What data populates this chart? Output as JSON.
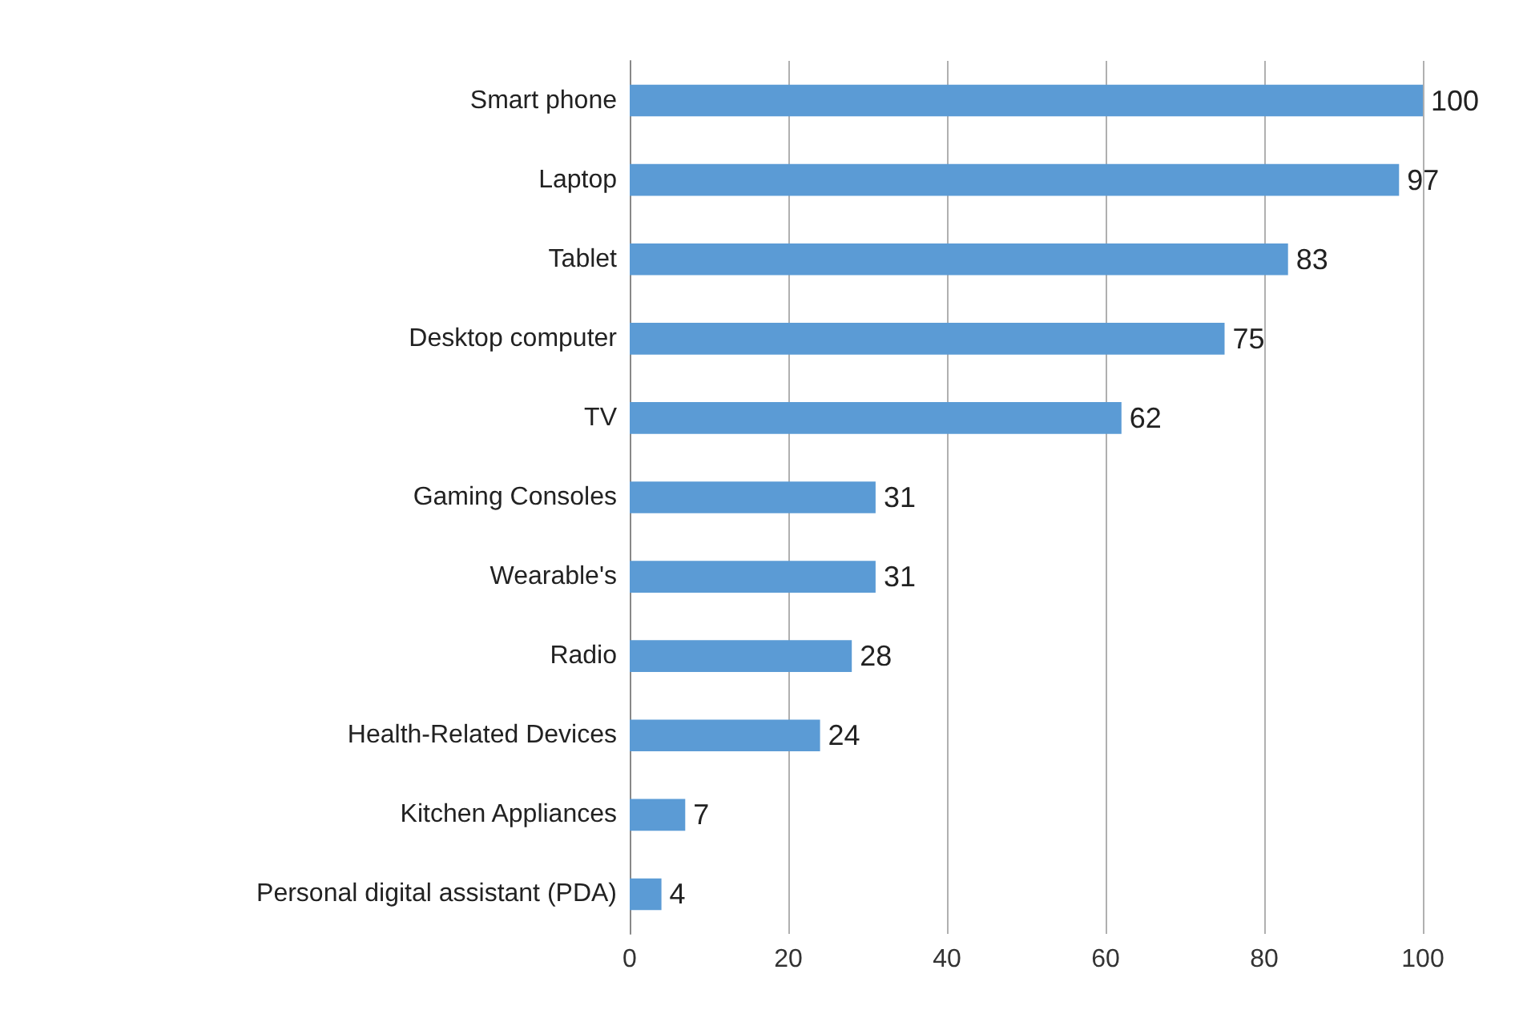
{
  "chart_data": {
    "type": "bar",
    "orientation": "horizontal",
    "categories": [
      "Smart phone",
      "Laptop",
      "Tablet",
      "Desktop computer",
      "TV",
      "Gaming Consoles",
      "Wearable's",
      "Radio",
      "Health-Related Devices",
      "Kitchen Appliances",
      "Personal digital assistant (PDA)"
    ],
    "values": [
      100,
      97,
      83,
      75,
      62,
      31,
      31,
      28,
      24,
      7,
      4
    ],
    "color": "#5b9bd5",
    "xlim": [
      0,
      100
    ],
    "xticks": [
      0,
      20,
      40,
      60,
      80,
      100
    ],
    "grid": "x",
    "data_labels": true
  }
}
